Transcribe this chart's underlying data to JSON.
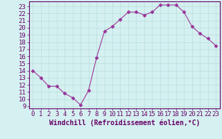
{
  "x": [
    0,
    1,
    2,
    3,
    4,
    5,
    6,
    7,
    8,
    9,
    10,
    11,
    12,
    13,
    14,
    15,
    16,
    17,
    18,
    19,
    20,
    21,
    22,
    23
  ],
  "y": [
    14,
    13,
    11.8,
    11.8,
    10.8,
    10.2,
    9.2,
    11.2,
    15.8,
    19.5,
    20.2,
    21.2,
    22.2,
    22.2,
    21.8,
    22.2,
    23.2,
    23.2,
    23.2,
    22.2,
    20.2,
    19.2,
    18.5,
    17.5
  ],
  "line_color": "#993399",
  "marker": "D",
  "marker_size": 2.5,
  "background_color": "#d5f0f0",
  "grid_color": "#b8dede",
  "xlabel": "Windchill (Refroidissement éolien,°C)",
  "xlabel_color": "#660066",
  "xlim": [
    -0.5,
    23.5
  ],
  "ylim": [
    8.7,
    23.7
  ],
  "ytick_min": 9,
  "ytick_max": 23,
  "xtick_labels": [
    "0",
    "1",
    "2",
    "3",
    "4",
    "5",
    "6",
    "7",
    "8",
    "9",
    "10",
    "11",
    "12",
    "13",
    "14",
    "15",
    "16",
    "17",
    "18",
    "19",
    "20",
    "21",
    "22",
    "23"
  ],
  "tick_color": "#660066",
  "axis_color": "#660066",
  "font_size": 6.5
}
